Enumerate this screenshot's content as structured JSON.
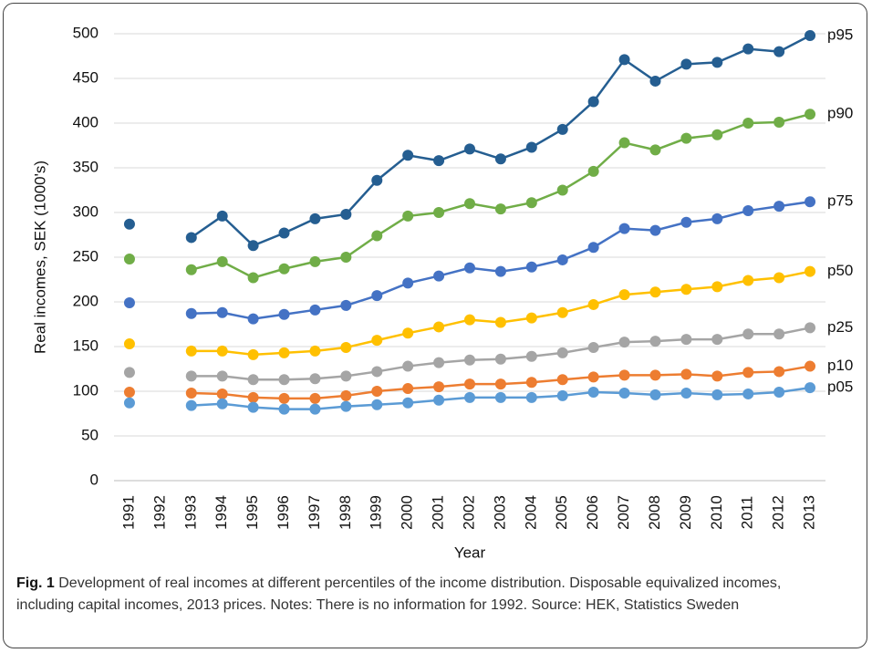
{
  "chart_data": {
    "type": "line",
    "y_label": "Real incomes, SEK (1000's)",
    "x_label": "Year",
    "categories": [
      "1991",
      "1992",
      "1993",
      "1994",
      "1995",
      "1996",
      "1997",
      "1998",
      "1999",
      "2000",
      "2001",
      "2002",
      "2003",
      "2004",
      "2005",
      "2006",
      "2007",
      "2008",
      "2009",
      "2010",
      "2011",
      "2012",
      "2013"
    ],
    "ylim": [
      0,
      500
    ],
    "yticks": [
      0,
      50,
      100,
      150,
      200,
      250,
      300,
      350,
      400,
      450,
      500
    ],
    "grid": true,
    "series": [
      {
        "name": "p95",
        "color": "#255e91",
        "values": [
          287,
          null,
          272,
          296,
          263,
          277,
          293,
          298,
          336,
          364,
          358,
          371,
          360,
          373,
          393,
          424,
          471,
          447,
          466,
          468,
          483,
          480,
          498
        ]
      },
      {
        "name": "p90",
        "color": "#70ad47",
        "values": [
          248,
          null,
          236,
          245,
          227,
          237,
          245,
          250,
          274,
          296,
          300,
          310,
          304,
          311,
          325,
          346,
          378,
          370,
          383,
          387,
          400,
          401,
          410
        ]
      },
      {
        "name": "p75",
        "color": "#4472c4",
        "values": [
          199,
          null,
          187,
          188,
          181,
          186,
          191,
          196,
          207,
          221,
          229,
          238,
          234,
          239,
          247,
          261,
          282,
          280,
          289,
          293,
          302,
          307,
          312
        ]
      },
      {
        "name": "p50",
        "color": "#ffc000",
        "values": [
          153,
          null,
          145,
          145,
          141,
          143,
          145,
          149,
          157,
          165,
          172,
          180,
          177,
          182,
          188,
          197,
          208,
          211,
          214,
          217,
          224,
          227,
          234
        ]
      },
      {
        "name": "p25",
        "color": "#a5a5a5",
        "values": [
          121,
          null,
          117,
          117,
          113,
          113,
          114,
          117,
          122,
          128,
          132,
          135,
          136,
          139,
          143,
          149,
          155,
          156,
          158,
          158,
          164,
          164,
          171
        ]
      },
      {
        "name": "p10",
        "color": "#ed7d31",
        "values": [
          99,
          null,
          98,
          97,
          93,
          92,
          92,
          95,
          100,
          103,
          105,
          108,
          108,
          110,
          113,
          116,
          118,
          118,
          119,
          117,
          121,
          122,
          128
        ]
      },
      {
        "name": "p05",
        "color": "#5b9bd5",
        "values": [
          87,
          null,
          84,
          86,
          82,
          80,
          80,
          83,
          85,
          87,
          90,
          93,
          93,
          93,
          95,
          99,
          98,
          96,
          98,
          96,
          97,
          99,
          104
        ]
      }
    ]
  },
  "caption": {
    "label": "Fig. 1",
    "text": "Development of real incomes at different percentiles of the income distribution. Disposable equivalized incomes, including capital incomes, 2013 prices. Notes: There is no information for 1992. Source: HEK, Statistics Sweden"
  }
}
